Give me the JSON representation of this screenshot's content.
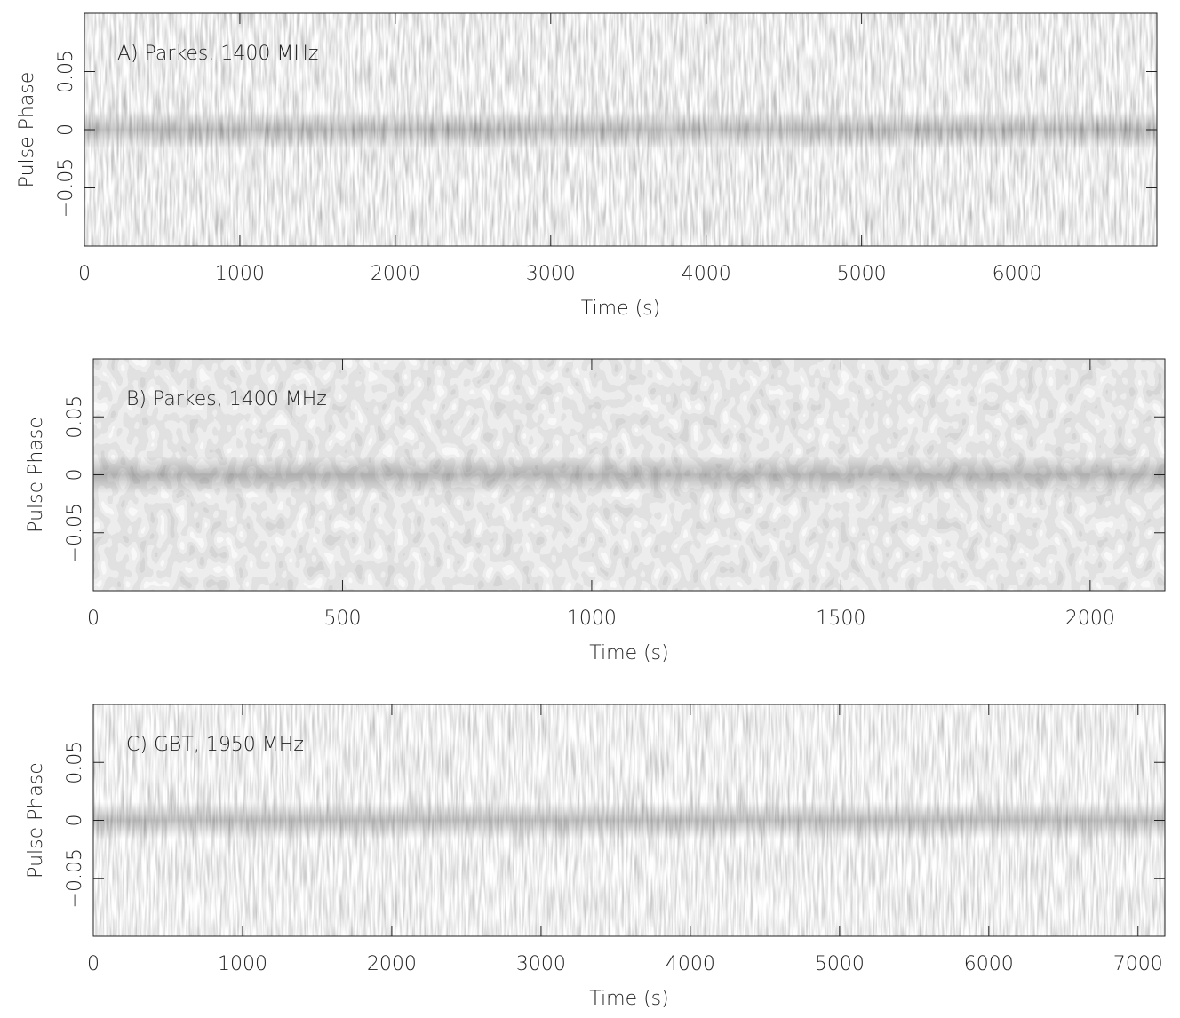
{
  "chart_data": [
    {
      "type": "heatmap",
      "annotation": "A) Parkes, 1400 MHz",
      "xlabel": "Time (s)",
      "ylabel": "Pulse Phase",
      "xlim": [
        0,
        6900
      ],
      "xticks": [
        0,
        1000,
        2000,
        3000,
        4000,
        5000,
        6000
      ],
      "ylim": [
        -0.1,
        0.1
      ],
      "yticks": [
        {
          "value": -0.05,
          "label": "−0.05"
        },
        0,
        0.05
      ]
    },
    {
      "type": "heatmap",
      "annotation": "B) Parkes, 1400 MHz",
      "xlabel": "Time (s)",
      "ylabel": "Pulse Phase",
      "xlim": [
        0,
        2150
      ],
      "xticks": [
        0,
        500,
        1000,
        1500,
        2000
      ],
      "ylim": [
        -0.1,
        0.1
      ],
      "yticks": [
        {
          "value": -0.05,
          "label": "−0.05"
        },
        0,
        0.05
      ]
    },
    {
      "type": "heatmap",
      "annotation": "C) GBT, 1950 MHz",
      "xlabel": "Time (s)",
      "ylabel": "Pulse Phase",
      "xlim": [
        0,
        7180
      ],
      "xticks": [
        0,
        1000,
        2000,
        3000,
        4000,
        5000,
        6000,
        7000
      ],
      "ylim": [
        -0.1,
        0.1
      ],
      "yticks": [
        {
          "value": -0.05,
          "label": "−0.05"
        },
        0,
        0.05
      ]
    }
  ]
}
